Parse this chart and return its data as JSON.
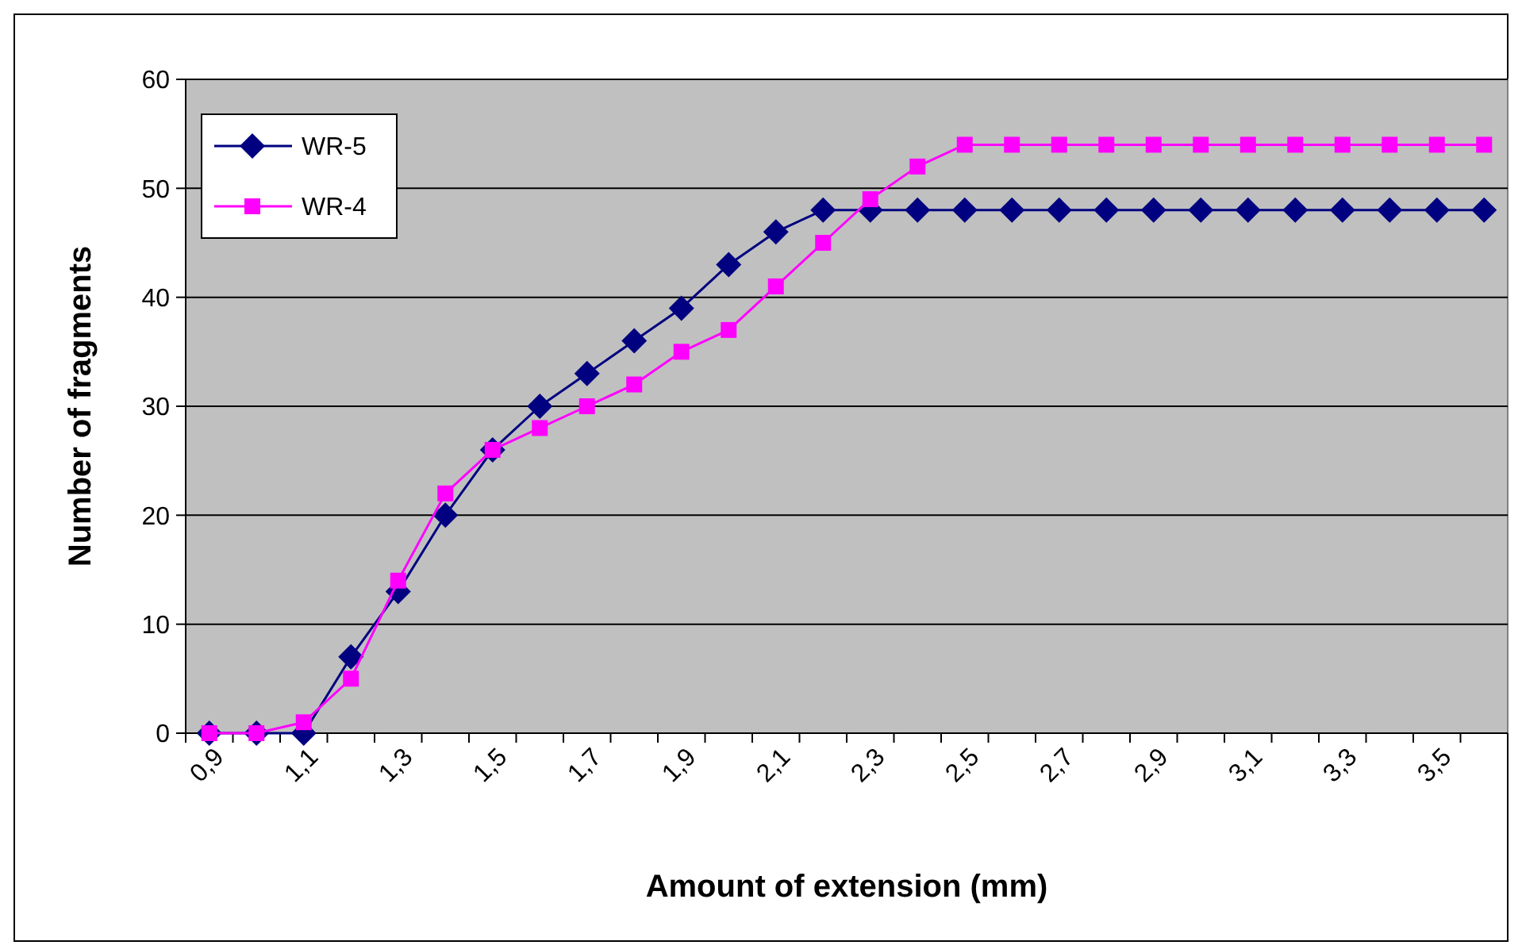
{
  "chart_data": {
    "type": "line",
    "xlabel": "Amount of extension (mm)",
    "ylabel": "Number of fragments",
    "categories": [
      "0,9",
      null,
      "1,1",
      null,
      "1,3",
      null,
      "1,5",
      null,
      "1,7",
      null,
      "1,9",
      null,
      "2,1",
      null,
      "2,3",
      null,
      "2,5",
      null,
      "2,7",
      null,
      "2,9",
      null,
      "3,1",
      null,
      "3,3",
      null,
      "3,5",
      null
    ],
    "series": [
      {
        "name": "WR-5",
        "color": "#000080",
        "marker": "diamond",
        "values": [
          0,
          0,
          0,
          7,
          13,
          20,
          26,
          30,
          33,
          36,
          39,
          43,
          46,
          48,
          48,
          48,
          48,
          48,
          48,
          48,
          48,
          48,
          48,
          48,
          48,
          48,
          48,
          48
        ]
      },
      {
        "name": "WR-4",
        "color": "#ff00ff",
        "marker": "square",
        "values": [
          0,
          0,
          1,
          5,
          14,
          22,
          26,
          28,
          30,
          32,
          35,
          37,
          41,
          45,
          49,
          52,
          54,
          54,
          54,
          54,
          54,
          54,
          54,
          54,
          54,
          54,
          54,
          54
        ]
      }
    ],
    "ylim": [
      0,
      60
    ],
    "yticks": [
      0,
      10,
      20,
      30,
      40,
      50,
      60
    ],
    "grid": "y",
    "legend": "top left"
  }
}
